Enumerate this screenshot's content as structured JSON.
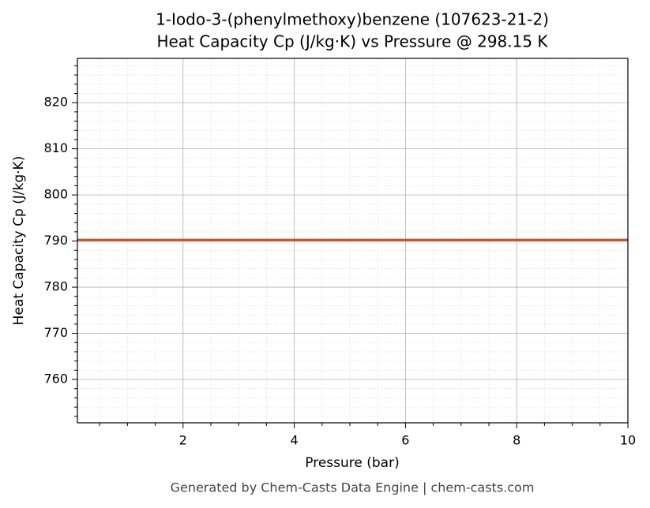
{
  "chart_data": {
    "type": "line",
    "title": "1-Iodo-3-(phenylmethoxy)benzene (107623-21-2)",
    "subtitle": "Heat Capacity Cp (J/kg·K) vs Pressure @ 298.15 K",
    "x_label": "Pressure (bar)",
    "y_label": "Heat Capacity Cp (J/kg·K)",
    "source": "Generated by Chem-Casts Data Engine | chem-casts.com",
    "x": [
      0.1,
      10
    ],
    "series": [
      {
        "name": "Cp",
        "color": "#c8562a",
        "values": [
          790.2,
          790.2
        ]
      }
    ],
    "xlim": [
      0.1,
      10
    ],
    "ylim": [
      750.6,
      829.6
    ],
    "xticks": [
      2,
      4,
      6,
      8,
      10
    ],
    "yticks": [
      760,
      770,
      780,
      790,
      800,
      810,
      820
    ],
    "xminorticks": [
      0.5,
      1,
      1.5,
      2.5,
      3,
      3.5,
      4.5,
      5,
      5.5,
      6.5,
      7,
      7.5,
      8.5,
      9,
      9.5
    ],
    "yminorticks": [
      752,
      754,
      756,
      758,
      762,
      764,
      766,
      768,
      772,
      774,
      776,
      778,
      782,
      784,
      786,
      788,
      792,
      794,
      796,
      798,
      802,
      804,
      806,
      808,
      812,
      814,
      816,
      818,
      822,
      824,
      826,
      828
    ],
    "grid": true
  }
}
